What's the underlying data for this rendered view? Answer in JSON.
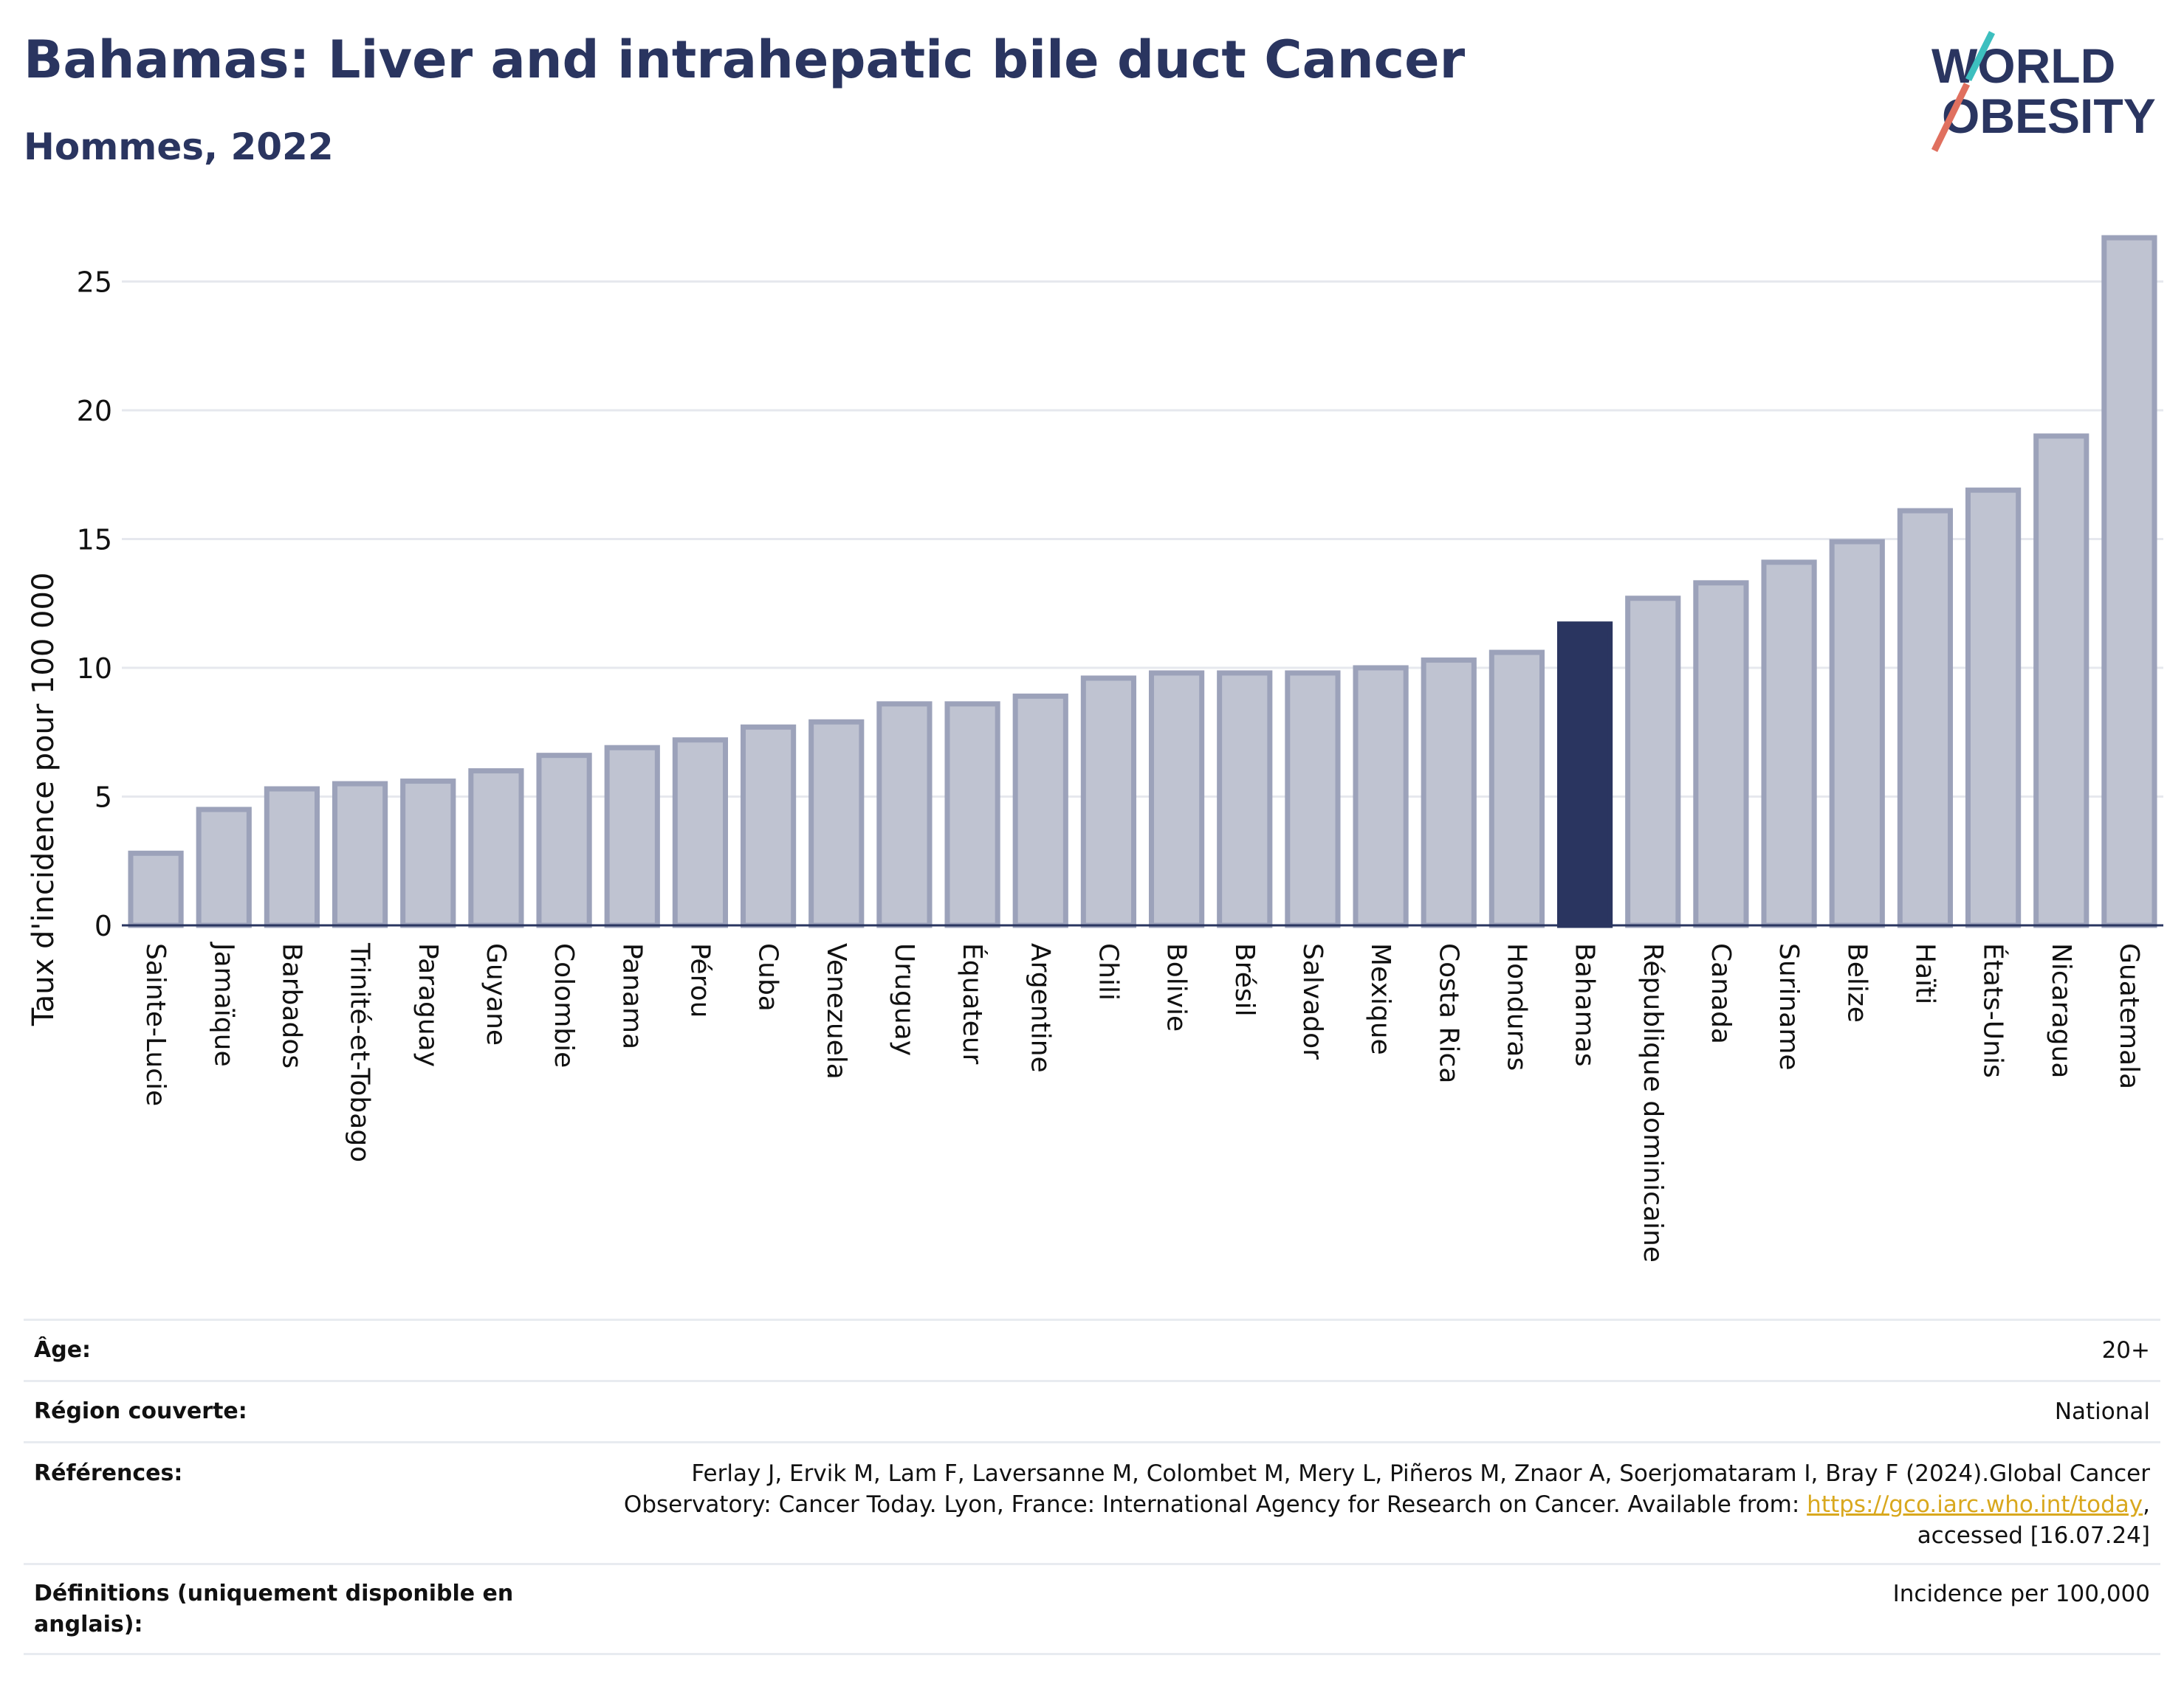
{
  "header": {
    "title": "Bahamas: Liver and intrahepatic bile duct Cancer",
    "subtitle": "Hommes, 2022"
  },
  "logo": {
    "line1": "WORLD",
    "line2": "OBESITY"
  },
  "colors": {
    "bar": "#bfc3d1",
    "bar_border": "#9ca2ba",
    "highlight": "#2a3560",
    "grid": "#e6e8ee",
    "text": "#2a3560"
  },
  "chart_data": {
    "type": "bar",
    "ylabel": "Taux d'incidence pour 100 000",
    "ylim": [
      0,
      27
    ],
    "yticks": [
      0,
      5,
      10,
      15,
      20,
      25
    ],
    "grid": true,
    "highlight": "Bahamas",
    "categories": [
      "Sainte-Lucie",
      "Jamaïque",
      "Barbados",
      "Trinité-et-Tobago",
      "Paraguay",
      "Guyane",
      "Colombie",
      "Panama",
      "Pérou",
      "Cuba",
      "Venezuela",
      "Uruguay",
      "Équateur",
      "Argentine",
      "Chili",
      "Bolivie",
      "Brésil",
      "Salvador",
      "Mexique",
      "Costa Rica",
      "Honduras",
      "Bahamas",
      "République dominicaine",
      "Canada",
      "Suriname",
      "Belize",
      "Haïti",
      "États-Unis",
      "Nicaragua",
      "Guatemala"
    ],
    "values": [
      2.8,
      4.5,
      5.3,
      5.5,
      5.6,
      6.0,
      6.6,
      6.9,
      7.2,
      7.7,
      7.9,
      8.6,
      8.6,
      8.9,
      9.6,
      9.8,
      9.8,
      9.8,
      10.0,
      10.3,
      10.6,
      11.7,
      12.7,
      13.3,
      14.1,
      14.9,
      16.1,
      16.9,
      19.0,
      26.7
    ]
  },
  "info": {
    "age_label": "Âge:",
    "age_value": "20+",
    "region_label": "Région couverte:",
    "region_value": "National",
    "ref_label": "Références:",
    "ref_line1": "Ferlay J, Ervik M, Lam F, Laversanne M, Colombet M, Mery L, Piñeros M, Znaor A, Soerjomataram I, Bray F (2024).Global Cancer",
    "ref_line2_pre": "Observatory: Cancer Today. Lyon, France: International Agency for Research on Cancer. Available from: ",
    "ref_link": "https://gco.iarc.who.int/today",
    "ref_line2_post": ",",
    "ref_line3": "accessed [16.07.24]",
    "def_label": "Définitions (uniquement disponible en anglais):",
    "def_value": "Incidence per 100,000"
  }
}
